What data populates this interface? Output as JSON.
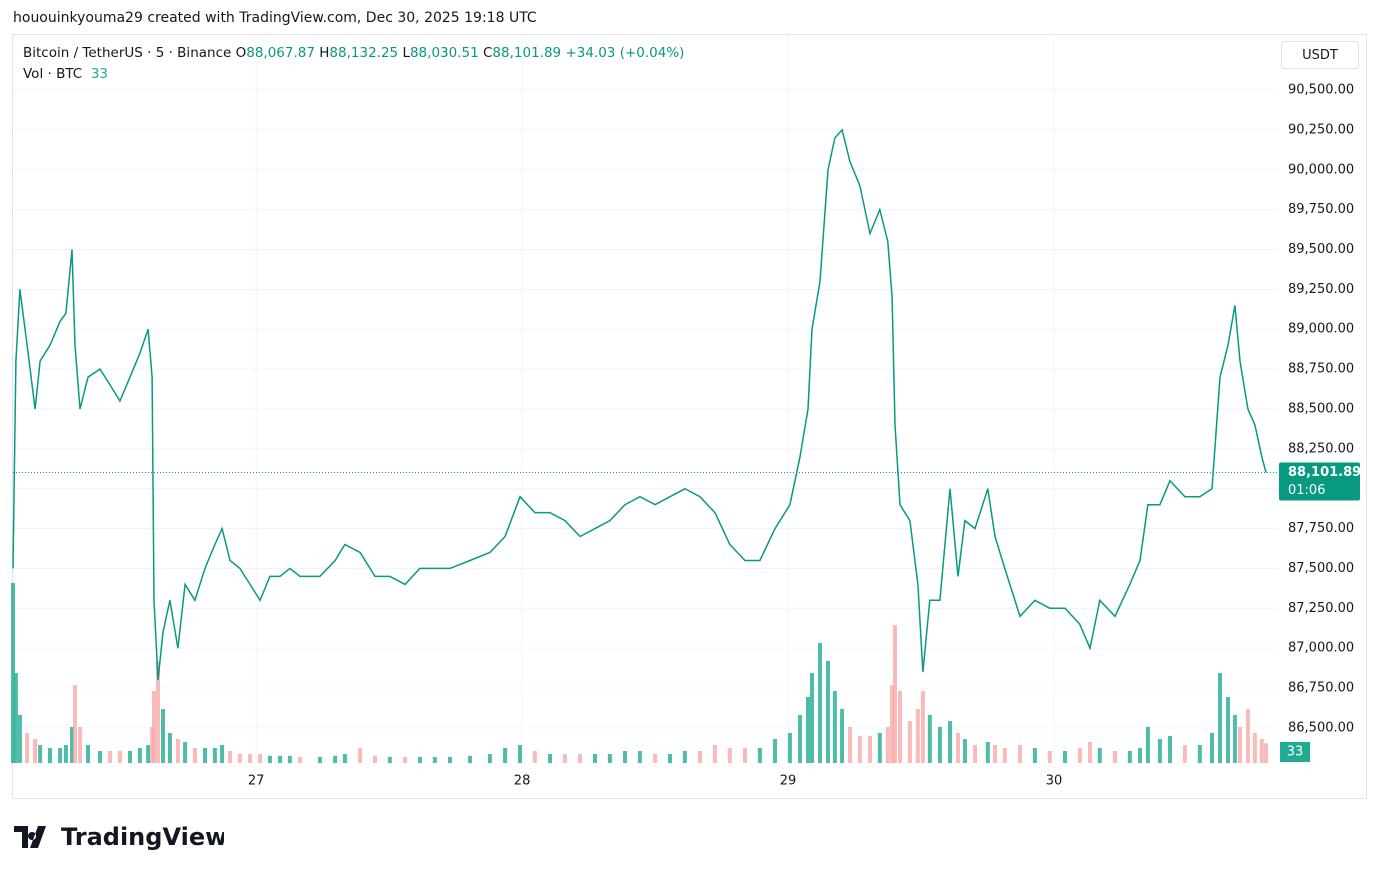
{
  "attribution": "hououinkyouma29 created with TradingView.com, Dec 30, 2025 19:18 UTC",
  "logo": "TradingView",
  "chart_data": {
    "type": "line",
    "symbol": "Bitcoin / TetherUS · 5 · Binance",
    "ohlc": [
      {
        "key": "O",
        "label": "88,067.87"
      },
      {
        "key": "H",
        "label": "88,132.25"
      },
      {
        "key": "L",
        "label": "88,030.51"
      },
      {
        "key": "C",
        "label": "88,101.89"
      }
    ],
    "change": "+34.03 (+0.04%)",
    "currency": "USDT",
    "countdown": "01:06",
    "last_price": {
      "value": 88101.89,
      "label": "88,101.89"
    },
    "color": "#089981",
    "x": [
      26.086,
      26.097,
      26.112,
      26.139,
      26.169,
      26.188,
      26.225,
      26.263,
      26.285,
      26.308,
      26.319,
      26.338,
      26.368,
      26.413,
      26.451,
      26.488,
      26.526,
      26.563,
      26.594,
      26.609,
      26.616,
      26.631,
      26.65,
      26.676,
      26.706,
      26.733,
      26.77,
      26.808,
      26.845,
      26.872,
      26.902,
      26.939,
      26.977,
      27.015,
      27.052,
      27.09,
      27.127,
      27.165,
      27.24,
      27.297,
      27.334,
      27.391,
      27.447,
      27.503,
      27.56,
      27.616,
      27.672,
      27.729,
      27.804,
      27.879,
      27.936,
      27.992,
      28.048,
      28.105,
      28.161,
      28.218,
      28.274,
      28.33,
      28.387,
      28.443,
      28.5,
      28.556,
      28.612,
      28.669,
      28.725,
      28.781,
      28.838,
      28.894,
      28.951,
      29.007,
      29.045,
      29.075,
      29.09,
      29.12,
      29.15,
      29.176,
      29.203,
      29.233,
      29.27,
      29.308,
      29.345,
      29.375,
      29.391,
      29.402,
      29.421,
      29.458,
      29.488,
      29.507,
      29.533,
      29.571,
      29.609,
      29.639,
      29.665,
      29.703,
      29.751,
      29.778,
      29.815,
      29.872,
      29.928,
      29.984,
      30.041,
      30.097,
      30.135,
      30.172,
      30.229,
      30.285,
      30.323,
      30.353,
      30.398,
      30.436,
      30.492,
      30.548,
      30.594,
      30.624,
      30.654,
      30.68,
      30.699,
      30.729,
      30.755,
      30.781,
      30.797
    ],
    "values": [
      87500,
      88800,
      89250,
      88900,
      88500,
      88800,
      88900,
      89050,
      89100,
      89500,
      88900,
      88500,
      88700,
      88750,
      88650,
      88550,
      88700,
      88850,
      89000,
      88700,
      87300,
      86800,
      87100,
      87300,
      87000,
      87400,
      87300,
      87500,
      87650,
      87750,
      87550,
      87500,
      87400,
      87300,
      87450,
      87450,
      87500,
      87450,
      87450,
      87550,
      87650,
      87600,
      87450,
      87450,
      87400,
      87500,
      87500,
      87500,
      87550,
      87600,
      87700,
      87950,
      87850,
      87850,
      87800,
      87700,
      87750,
      87800,
      87900,
      87950,
      87900,
      87950,
      88000,
      87950,
      87850,
      87650,
      87550,
      87550,
      87750,
      87900,
      88200,
      88500,
      89000,
      89300,
      90000,
      90200,
      90250,
      90050,
      89900,
      89600,
      89750,
      89550,
      89200,
      88400,
      87900,
      87800,
      87400,
      86850,
      87300,
      87300,
      88000,
      87450,
      87800,
      87750,
      88000,
      87700,
      87500,
      87200,
      87300,
      87250,
      87250,
      87150,
      87000,
      87300,
      87200,
      87400,
      87550,
      87900,
      87900,
      88050,
      87950,
      87950,
      88000,
      88700,
      88900,
      89150,
      88800,
      88500,
      88400,
      88200,
      88101.89
    ],
    "volume": {
      "label": "Vol · BTC",
      "up_color": "#22ab94",
      "down_color": "#f7a9a7",
      "values": [
        300,
        150,
        80,
        50,
        40,
        30,
        25,
        25,
        30,
        60,
        130,
        60,
        30,
        20,
        20,
        20,
        20,
        25,
        30,
        60,
        120,
        170,
        90,
        50,
        40,
        35,
        25,
        25,
        25,
        30,
        20,
        15,
        15,
        15,
        12,
        12,
        12,
        10,
        10,
        12,
        15,
        25,
        12,
        10,
        10,
        10,
        10,
        10,
        12,
        15,
        25,
        30,
        20,
        15,
        15,
        15,
        15,
        15,
        20,
        20,
        15,
        15,
        20,
        20,
        30,
        25,
        25,
        25,
        40,
        50,
        80,
        110,
        150,
        200,
        170,
        120,
        90,
        60,
        45,
        45,
        50,
        60,
        130,
        230,
        120,
        70,
        90,
        120,
        80,
        60,
        70,
        50,
        40,
        30,
        35,
        30,
        25,
        30,
        25,
        20,
        20,
        25,
        35,
        25,
        20,
        20,
        25,
        60,
        40,
        45,
        30,
        30,
        50,
        150,
        110,
        80,
        60,
        90,
        50,
        40,
        33
      ]
    },
    "xlim": [
      26.086,
      30.842
    ],
    "xticks": [
      27,
      28,
      29,
      30
    ],
    "ylim": [
      86280,
      90845
    ],
    "yticks": [
      {
        "value": 86500,
        "label": "86,500.00"
      },
      {
        "value": 86750,
        "label": "86,750.00"
      },
      {
        "value": 87000,
        "label": "87,000.00"
      },
      {
        "value": 87250,
        "label": "87,250.00"
      },
      {
        "value": 87500,
        "label": "87,500.00"
      },
      {
        "value": 87750,
        "label": "87,750.00"
      },
      {
        "value": 88000,
        "label": "88,000.00"
      },
      {
        "value": 88250,
        "label": "88,250.00"
      },
      {
        "value": 88500,
        "label": "88,500.00"
      },
      {
        "value": 88750,
        "label": "88,750.00"
      },
      {
        "value": 89000,
        "label": "89,000.00"
      },
      {
        "value": 89250,
        "label": "89,250.00"
      },
      {
        "value": 89500,
        "label": "89,500.00"
      },
      {
        "value": 89750,
        "label": "89,750.00"
      },
      {
        "value": 90000,
        "label": "90,000.00"
      },
      {
        "value": 90250,
        "label": "90,250.00"
      },
      {
        "value": 90500,
        "label": "90,500.00"
      }
    ],
    "grid": true
  }
}
